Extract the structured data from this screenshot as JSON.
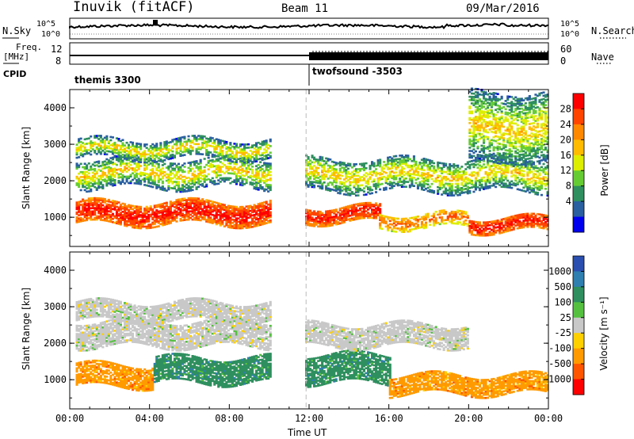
{
  "header": {
    "station": "Inuvik (fitACF)",
    "beam": "Beam 11",
    "date": "09/Mar/2016"
  },
  "strips": {
    "nsky_label": "N.Sky",
    "nsky_ticks": [
      "10^5",
      "10^0"
    ],
    "nsearch_label": "N.Search",
    "nsearch_ticks": [
      "10^5",
      "10^0"
    ],
    "freq_label": "Freq.",
    "freq_unit": "[MHz]",
    "freq_ticks": [
      "12",
      "8"
    ],
    "nave_label": "Nave",
    "nave_ticks": [
      "60",
      "0"
    ],
    "cpid_label": "CPID",
    "cpid_segments": [
      "themis 3300",
      "twofsound -3503"
    ]
  },
  "chart_data": [
    {
      "type": "heatmap",
      "panel": "power",
      "ylabel": "Slant Range [km]",
      "xlabel": "Time UT",
      "x_ticks": [
        "00:00",
        "04:00",
        "08:00",
        "12:00",
        "16:00",
        "20:00",
        "00:00"
      ],
      "xlim_hours": [
        0,
        24
      ],
      "y_ticks": [
        1000,
        2000,
        3000,
        4000
      ],
      "ylim": [
        200,
        4500
      ],
      "colorbar_label": "Power [dB]",
      "colorbar_ticks": [
        "28",
        "24",
        "20",
        "16",
        "12",
        "8",
        "4"
      ],
      "colorbar_colors": [
        "#ff0000",
        "#ff4400",
        "#ff8800",
        "#ffbb00",
        "#ddee00",
        "#66cc33",
        "#2f8f5f",
        "#2a5fa0",
        "#0000ee"
      ],
      "data_gap_hours": [
        10.05,
        11.75
      ],
      "bands": [
        {
          "t": [
            0.3,
            10.0
          ],
          "range": [
            800,
            1400
          ],
          "level": "high"
        },
        {
          "t": [
            11.8,
            15.5
          ],
          "range": [
            850,
            1300
          ],
          "level": "high"
        },
        {
          "t": [
            15.5,
            20.0
          ],
          "range": [
            700,
            1100
          ],
          "level": "medium"
        },
        {
          "t": [
            20.0,
            24.0
          ],
          "range": [
            600,
            1000
          ],
          "level": "high"
        },
        {
          "t": [
            0.3,
            10.0
          ],
          "range": [
            1800,
            2600
          ],
          "level": "low"
        },
        {
          "t": [
            11.8,
            24.0
          ],
          "range": [
            1700,
            2600
          ],
          "level": "low"
        },
        {
          "t": [
            0.3,
            10.0
          ],
          "range": [
            2600,
            3100
          ],
          "level": "low"
        },
        {
          "t": [
            20.0,
            24.0
          ],
          "range": [
            2500,
            4400
          ],
          "level": "low"
        }
      ]
    },
    {
      "type": "heatmap",
      "panel": "velocity",
      "ylabel": "Slant Range [km]",
      "xlabel": "Time UT",
      "x_ticks": [
        "00:00",
        "04:00",
        "08:00",
        "12:00",
        "16:00",
        "20:00",
        "00:00"
      ],
      "xlim_hours": [
        0,
        24
      ],
      "y_ticks": [
        1000,
        2000,
        3000,
        4000
      ],
      "ylim": [
        200,
        4500
      ],
      "colorbar_label": "Velocity [m s⁻¹]",
      "colorbar_ticks": [
        "1000",
        "500",
        "100",
        "25",
        "-25",
        "-100",
        "-500",
        "-1000"
      ],
      "colorbar_colors": [
        "#2a4fb0",
        "#2f7fb0",
        "#2f8f5f",
        "#55c040",
        "#c8c8c8",
        "#ffd000",
        "#ff9a00",
        "#ff5500",
        "#ff0000"
      ],
      "data_gap_hours": [
        10.05,
        11.75
      ],
      "bands": [
        {
          "t": [
            0.3,
            4.2
          ],
          "range": [
            800,
            1400
          ],
          "level": "-100"
        },
        {
          "t": [
            4.2,
            10.0
          ],
          "range": [
            900,
            1600
          ],
          "level": "100"
        },
        {
          "t": [
            11.8,
            16.0
          ],
          "range": [
            900,
            1700
          ],
          "level": "100"
        },
        {
          "t": [
            16.0,
            24.0
          ],
          "range": [
            600,
            1100
          ],
          "level": "-100"
        },
        {
          "t": [
            0.3,
            10.0
          ],
          "range": [
            1900,
            2600
          ],
          "level": "-25"
        },
        {
          "t": [
            11.8,
            20.0
          ],
          "range": [
            1900,
            2500
          ],
          "level": "-25"
        },
        {
          "t": [
            0.3,
            10.0
          ],
          "range": [
            2600,
            3100
          ],
          "level": "-25"
        }
      ]
    }
  ],
  "colors": {
    "gap_line": "#bbbbbb",
    "trace": "#000000"
  }
}
